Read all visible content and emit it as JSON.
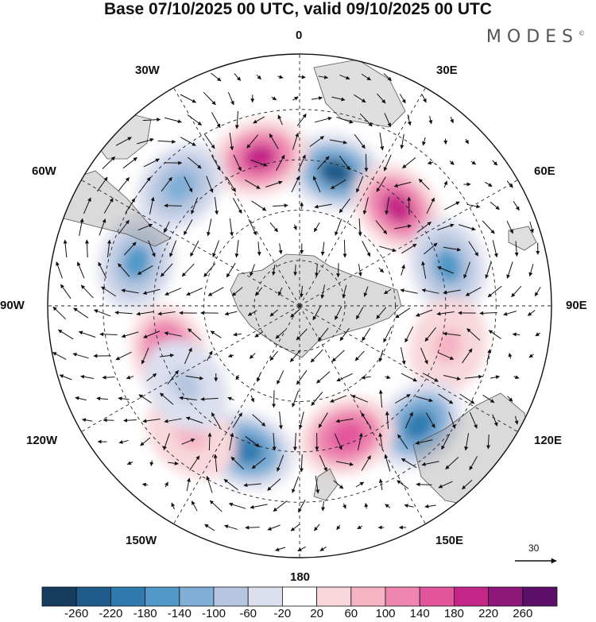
{
  "title": "Base 07/10/2025 00 UTC, valid 09/10/2025 00 UTC",
  "logo": "MODES",
  "logo_mark": "©",
  "longitude_labels": {
    "n0": "0",
    "n30e": "30E",
    "n60e": "60E",
    "n90e": "90E",
    "n120e": "120E",
    "n150e": "150E",
    "n180": "180",
    "n150w": "150W",
    "n120w": "120W",
    "n90w": "90W",
    "n60w": "60W",
    "n30w": "30W"
  },
  "vector_reference": "30",
  "colorbar": {
    "labels": [
      "-260",
      "-220",
      "-180",
      "-140",
      "-100",
      "-60",
      "-20",
      "20",
      "60",
      "100",
      "140",
      "180",
      "220",
      "260"
    ],
    "colors": [
      "#173d5e",
      "#1f5c8a",
      "#2f7bb0",
      "#4f98c8",
      "#7faed6",
      "#b6c6e0",
      "#dcdfee",
      "#ffffff",
      "#f8d8dc",
      "#f5b3c4",
      "#ee86b0",
      "#e2559d",
      "#c42688",
      "#8e1879",
      "#5c0f68"
    ]
  },
  "chart_data": {
    "type": "polar-stereographic-map",
    "projection": "south polar stereographic",
    "field": "shaded anomaly with wind vectors",
    "longitude_ticks": [
      "0",
      "30E",
      "60E",
      "90E",
      "120E",
      "150E",
      "180",
      "150W",
      "120W",
      "90W",
      "60W",
      "30W"
    ],
    "color_levels": [
      -260,
      -220,
      -180,
      -140,
      -100,
      -60,
      -20,
      20,
      60,
      100,
      140,
      180,
      220,
      260
    ],
    "anomaly_centers": [
      {
        "lon": 15,
        "sign": "negative",
        "peak": -220
      },
      {
        "lon": -15,
        "sign": "positive",
        "peak": 220
      },
      {
        "lon": -45,
        "sign": "negative",
        "peak": -100
      },
      {
        "lon": 45,
        "sign": "positive",
        "peak": 220
      },
      {
        "lon": 75,
        "sign": "negative",
        "peak": -140
      },
      {
        "lon": -75,
        "sign": "negative",
        "peak": -140
      },
      {
        "lon": -110,
        "sign": "positive",
        "peak": 180
      },
      {
        "lon": 105,
        "sign": "positive",
        "peak": 100
      },
      {
        "lon": 135,
        "sign": "negative",
        "peak": -180
      },
      {
        "lon": 160,
        "sign": "positive",
        "peak": 180
      },
      {
        "lon": -160,
        "sign": "negative",
        "peak": -180
      },
      {
        "lon": -140,
        "sign": "positive",
        "peak": 100
      },
      {
        "lon": -125,
        "sign": "negative",
        "peak": -60
      }
    ]
  }
}
